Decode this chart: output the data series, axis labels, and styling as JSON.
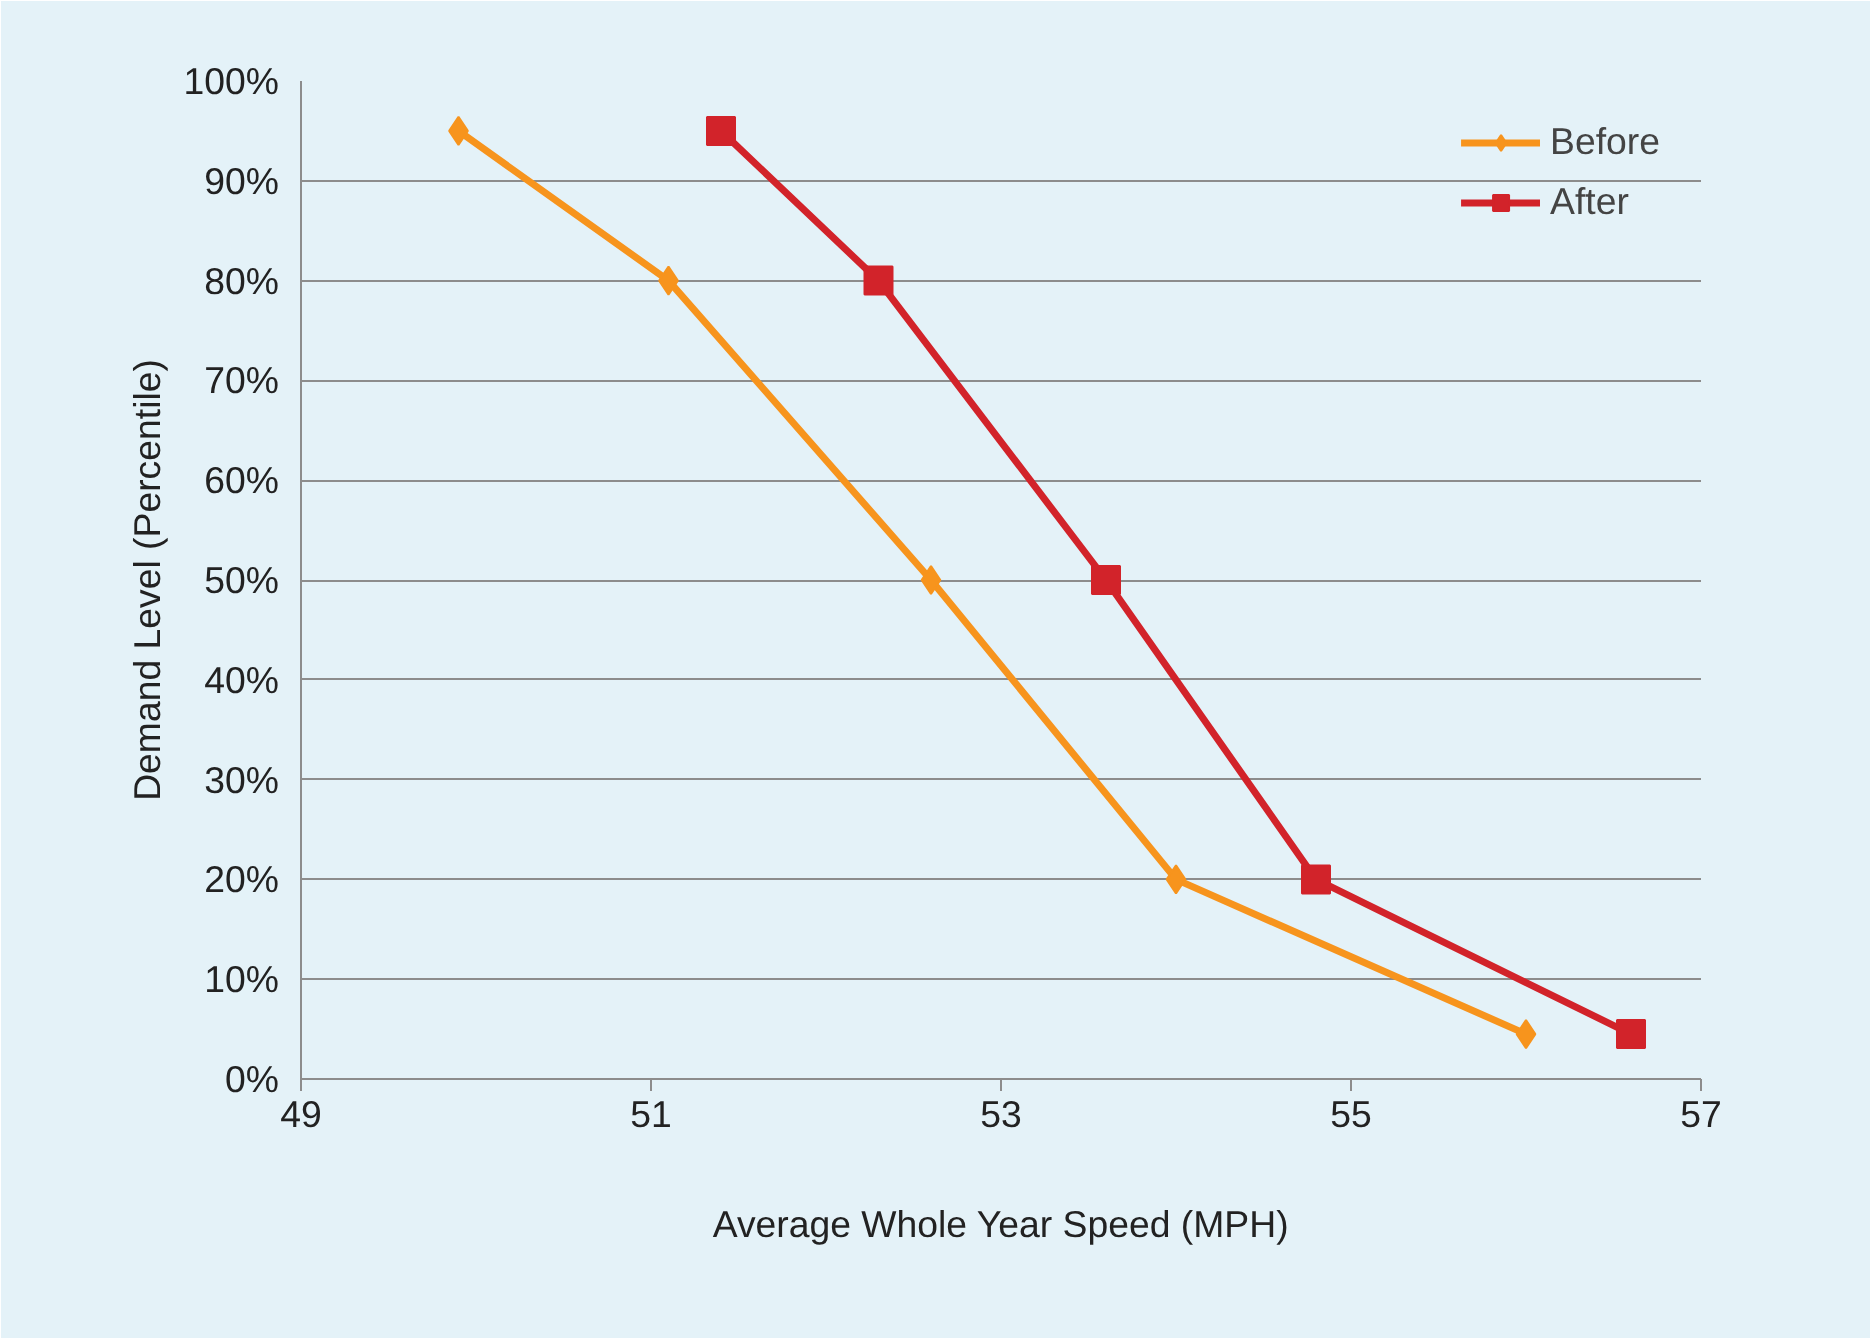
{
  "chart_data": {
    "type": "line",
    "xlabel": "Average Whole Year Speed (MPH)",
    "ylabel": "Demand Level (Percentile)",
    "xlim": [
      49,
      57
    ],
    "xticks": [
      49,
      51,
      53,
      55,
      57
    ],
    "ylim": [
      0,
      100
    ],
    "yticks": [
      {
        "value": 0,
        "label": "0%"
      },
      {
        "value": 10,
        "label": "10%"
      },
      {
        "value": 20,
        "label": "20%"
      },
      {
        "value": 30,
        "label": "30%"
      },
      {
        "value": 40,
        "label": "40%"
      },
      {
        "value": 50,
        "label": "50%"
      },
      {
        "value": 60,
        "label": "60%"
      },
      {
        "value": 70,
        "label": "70%"
      },
      {
        "value": 80,
        "label": "80%"
      },
      {
        "value": 90,
        "label": "90%"
      },
      {
        "value": 100,
        "label": "100%"
      }
    ],
    "grid": "y",
    "legend": "top right",
    "series": [
      {
        "name": "Before",
        "color": "#f7941d",
        "marker": "diamond",
        "x": [
          49.9,
          51.1,
          52.6,
          54.0,
          56.0
        ],
        "values": [
          95,
          80,
          50,
          20,
          4.5
        ]
      },
      {
        "name": "After",
        "color": "#d2232a",
        "marker": "square",
        "x": [
          51.4,
          52.3,
          53.6,
          54.8,
          56.6
        ],
        "values": [
          95,
          80,
          50,
          20,
          4.5
        ]
      }
    ]
  }
}
